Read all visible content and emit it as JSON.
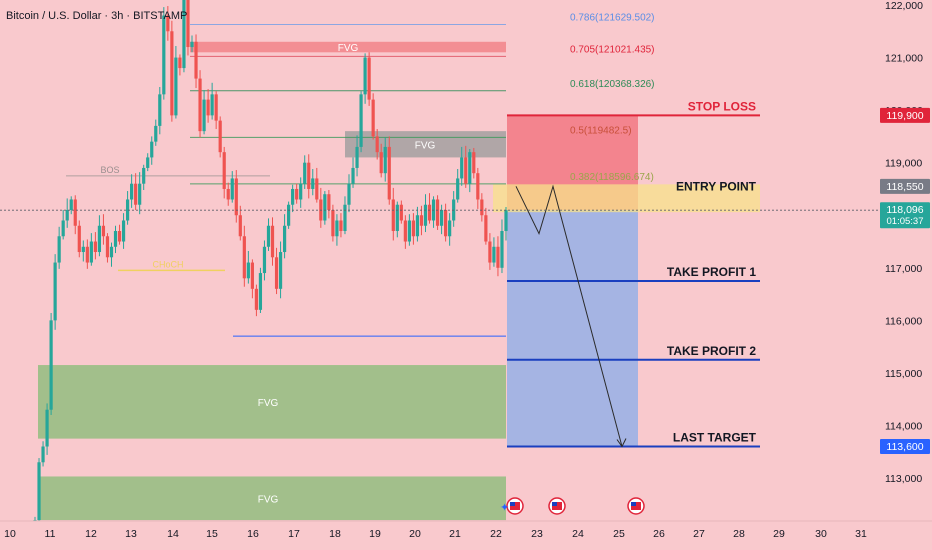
{
  "header": {
    "symbol_title": "Bitcoin / U.S. Dollar · 3h · BITSTAMP"
  },
  "colors": {
    "background": "#f9c9cd",
    "up_candle": "#26a69a",
    "down_candle": "#ef5350",
    "fvg_green": "#9dbf87",
    "fvg_gray": "#a3a0a0",
    "fvg_red": "#f28b8f",
    "stop_zone": "#f27c87",
    "target_zone": "#a0b3e4",
    "entry_zone": "#f7e28a",
    "stop_line": "#e0243a",
    "target_line": "#1a3fbf"
  },
  "chart_data": {
    "type": "candlestick",
    "title": "Bitcoin / U.S. Dollar · 3h · BITSTAMP",
    "y_ticks": [
      "122,000",
      "121,000",
      "120,000",
      "119,000",
      "117,000",
      "116,000",
      "115,000",
      "114,000",
      "113,000"
    ],
    "ylim": [
      112200,
      122200
    ],
    "x_ticks": [
      "10",
      "11",
      "12",
      "13",
      "14",
      "15",
      "16",
      "17",
      "18",
      "19",
      "20",
      "21",
      "22",
      "23",
      "24",
      "25",
      "26",
      "27",
      "28",
      "29",
      "30",
      "31"
    ],
    "fib_levels": [
      {
        "label": "0.786(121629.502)",
        "value": 121629.502,
        "color": "#5b8ee6"
      },
      {
        "label": "0.705(121021.435)",
        "value": 121021.435,
        "color": "#e0243a"
      },
      {
        "label": "0.618(120368.326)",
        "value": 120368.326,
        "color": "#2e8b57"
      },
      {
        "label": "0.5(119482.5)",
        "value": 119482.5,
        "color": "#c8503a"
      },
      {
        "label": "0.382(118596.674)",
        "value": 118596.674,
        "color": "#9aa54b"
      }
    ],
    "zones": [
      {
        "label": "FVG",
        "top": 121300,
        "bottom": 121100,
        "color": "red"
      },
      {
        "label": "FVG",
        "top": 119600,
        "bottom": 119100,
        "color": "gray"
      },
      {
        "label": "FVG",
        "top": 115150,
        "bottom": 113750,
        "color": "green"
      },
      {
        "label": "FVG",
        "top": 113030,
        "bottom": 112200,
        "color": "green"
      }
    ],
    "annotations": [
      {
        "label": "BOS",
        "value": 118750
      },
      {
        "label": "CHoCH",
        "value": 116950
      }
    ],
    "trade_levels": [
      {
        "label": "STOP LOSS",
        "value": 119900
      },
      {
        "label": "ENTRY POINT",
        "value": 118550
      },
      {
        "label": "TAKE PROFIT 1",
        "value": 116750
      },
      {
        "label": "TAKE PROFIT 2",
        "value": 115250
      },
      {
        "label": "LAST TARGET",
        "value": 113600
      }
    ],
    "price_badges": [
      {
        "text": "119,900",
        "value": 119900,
        "color": "#e0243a"
      },
      {
        "text": "118,550",
        "value": 118550,
        "color": "#787b86"
      },
      {
        "text": "118,096",
        "sub": "01:05:37",
        "value": 118096,
        "color": "#26a69a"
      },
      {
        "text": "113,600",
        "value": 113600,
        "color": "#2962ff"
      }
    ],
    "projected_path": [
      118550,
      117650,
      118550,
      113600
    ]
  }
}
